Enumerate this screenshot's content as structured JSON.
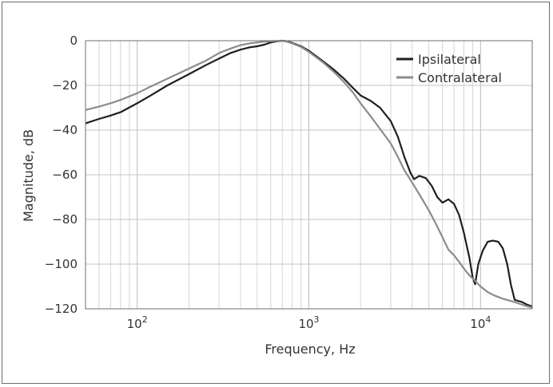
{
  "chart_data": {
    "type": "line",
    "title": "",
    "xlabel": "Frequency, Hz",
    "ylabel": "Magnitude, dB",
    "xscale": "log",
    "xlim": [
      50,
      20000
    ],
    "ylim": [
      -120,
      0
    ],
    "x_tick_labels": [
      {
        "value": 100,
        "base": "10",
        "exp": "2"
      },
      {
        "value": 1000,
        "base": "10",
        "exp": "3"
      },
      {
        "value": 10000,
        "base": "10",
        "exp": "4"
      }
    ],
    "y_ticks": [
      0,
      -20,
      -40,
      -60,
      -80,
      -100,
      -120
    ],
    "y_tick_labels": [
      "0",
      "−20",
      "−40",
      "−60",
      "−80",
      "−100",
      "−120"
    ],
    "grid": true,
    "legend_position": "top-right",
    "series": [
      {
        "name": "Ipsilateral",
        "color": "#1f1f1f",
        "points": [
          [
            50,
            -37
          ],
          [
            60,
            -35
          ],
          [
            70,
            -33.5
          ],
          [
            80,
            -32
          ],
          [
            100,
            -28
          ],
          [
            120,
            -24.5
          ],
          [
            150,
            -20
          ],
          [
            200,
            -15
          ],
          [
            250,
            -11
          ],
          [
            300,
            -8
          ],
          [
            350,
            -5.5
          ],
          [
            400,
            -4
          ],
          [
            450,
            -3
          ],
          [
            500,
            -2.5
          ],
          [
            550,
            -1.8
          ],
          [
            600,
            -0.8
          ],
          [
            650,
            -0.3
          ],
          [
            700,
            0
          ],
          [
            750,
            -0.3
          ],
          [
            800,
            -1
          ],
          [
            900,
            -2.5
          ],
          [
            1000,
            -4.5
          ],
          [
            1200,
            -9
          ],
          [
            1400,
            -13
          ],
          [
            1600,
            -17
          ],
          [
            1800,
            -21
          ],
          [
            2000,
            -24.5
          ],
          [
            2300,
            -27
          ],
          [
            2600,
            -30
          ],
          [
            3000,
            -36
          ],
          [
            3300,
            -43
          ],
          [
            3600,
            -52
          ],
          [
            3900,
            -59
          ],
          [
            4100,
            -62
          ],
          [
            4400,
            -60.5
          ],
          [
            4800,
            -61.5
          ],
          [
            5200,
            -65
          ],
          [
            5600,
            -70
          ],
          [
            6000,
            -72.5
          ],
          [
            6500,
            -71
          ],
          [
            7000,
            -73
          ],
          [
            7500,
            -78
          ],
          [
            8000,
            -86
          ],
          [
            8600,
            -97
          ],
          [
            9000,
            -106
          ],
          [
            9300,
            -109
          ],
          [
            9700,
            -100
          ],
          [
            10300,
            -94
          ],
          [
            11000,
            -90
          ],
          [
            11800,
            -89.5
          ],
          [
            12700,
            -90
          ],
          [
            13500,
            -93
          ],
          [
            14300,
            -100
          ],
          [
            15000,
            -109
          ],
          [
            15800,
            -116
          ],
          [
            16600,
            -116.5
          ],
          [
            17500,
            -117
          ],
          [
            18500,
            -118
          ],
          [
            20000,
            -119
          ]
        ]
      },
      {
        "name": "Contralateral",
        "color": "#8c8c8c",
        "points": [
          [
            50,
            -31
          ],
          [
            60,
            -29.5
          ],
          [
            70,
            -28
          ],
          [
            80,
            -26.5
          ],
          [
            100,
            -23.5
          ],
          [
            120,
            -20.5
          ],
          [
            150,
            -17
          ],
          [
            200,
            -12.5
          ],
          [
            250,
            -9
          ],
          [
            300,
            -5.5
          ],
          [
            350,
            -3.5
          ],
          [
            400,
            -2
          ],
          [
            450,
            -1.2
          ],
          [
            500,
            -0.8
          ],
          [
            550,
            -0.4
          ],
          [
            600,
            -0.2
          ],
          [
            650,
            -0.1
          ],
          [
            700,
            0
          ],
          [
            750,
            -0.5
          ],
          [
            800,
            -1.2
          ],
          [
            900,
            -2.8
          ],
          [
            1000,
            -5
          ],
          [
            1200,
            -9.5
          ],
          [
            1400,
            -14
          ],
          [
            1600,
            -18.5
          ],
          [
            1800,
            -23
          ],
          [
            2000,
            -28
          ],
          [
            2300,
            -34
          ],
          [
            2600,
            -39.5
          ],
          [
            3000,
            -46
          ],
          [
            3300,
            -52
          ],
          [
            3600,
            -58
          ],
          [
            4000,
            -63.5
          ],
          [
            4500,
            -70
          ],
          [
            5000,
            -76
          ],
          [
            5500,
            -82
          ],
          [
            6000,
            -88
          ],
          [
            6500,
            -93.5
          ],
          [
            7000,
            -96
          ],
          [
            7500,
            -99
          ],
          [
            8000,
            -102
          ],
          [
            8600,
            -105
          ],
          [
            9300,
            -107.5
          ],
          [
            10000,
            -110
          ],
          [
            11000,
            -112.5
          ],
          [
            12000,
            -114
          ],
          [
            13500,
            -115.5
          ],
          [
            15000,
            -116.5
          ],
          [
            16500,
            -117.5
          ],
          [
            18000,
            -118.5
          ],
          [
            20000,
            -119.5
          ]
        ]
      }
    ]
  }
}
